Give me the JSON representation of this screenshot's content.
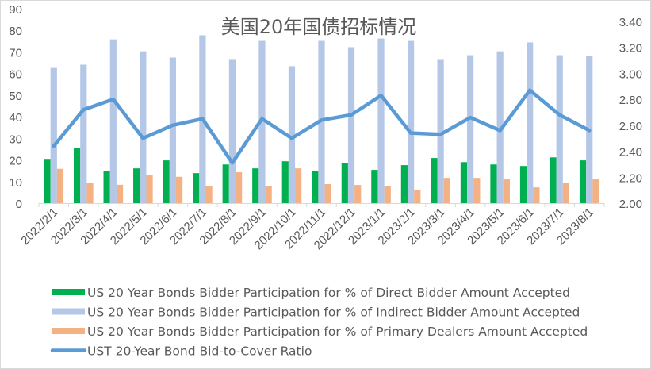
{
  "chart_data": {
    "type": "bar",
    "title": "美国20年国债招标情况",
    "xlabel": "",
    "ylabel": "",
    "y2label": "",
    "ylim": [
      0,
      90
    ],
    "y2lim": [
      2.0,
      3.4
    ],
    "yticks": [
      "0",
      "10",
      "20",
      "30",
      "40",
      "50",
      "60",
      "70",
      "80",
      "90"
    ],
    "y2ticks": [
      "2.00",
      "2.20",
      "2.40",
      "2.60",
      "2.80",
      "3.00",
      "3.20",
      "3.40"
    ],
    "grid": false,
    "legend_position": "bottom",
    "categories": [
      "2022/2/1",
      "2022/3/1",
      "2022/4/1",
      "2022/5/1",
      "2022/6/1",
      "2022/7/1",
      "2022/8/1",
      "2022/9/1",
      "2022/10/1",
      "2022/11/1",
      "2022/12/1",
      "2023/1/1",
      "2023/2/1",
      "2023/3/1",
      "2023/4/1",
      "2023/5/1",
      "2023/6/1",
      "2023/7/1",
      "2023/8/1"
    ],
    "series": [
      {
        "name": "US 20 Year Bonds Bidder Participation for % of Direct Bidder Amount Accepted",
        "type": "bar",
        "axis": "left",
        "color": "#00b050",
        "values": [
          20.5,
          25.6,
          15.0,
          16.1,
          19.8,
          13.9,
          17.9,
          16.1,
          19.4,
          15.0,
          18.7,
          15.4,
          17.6,
          20.9,
          19.0,
          17.9,
          17.2,
          21.2,
          19.8
        ]
      },
      {
        "name": "US 20 Year Bonds Bidder Participation for % of Indirect Bidder Amount Accepted",
        "type": "bar",
        "axis": "left",
        "color": "#b4c7e7",
        "values": [
          62.6,
          64.1,
          75.8,
          70.3,
          67.4,
          77.7,
          66.7,
          75.1,
          63.4,
          75.1,
          72.2,
          76.2,
          75.1,
          66.7,
          68.5,
          70.3,
          74.4,
          68.5,
          68.1
        ]
      },
      {
        "name": "US 20 Year Bonds Bidder Participation for % of Primary Dealers Amount Accepted",
        "type": "bar",
        "axis": "left",
        "color": "#f4b183",
        "values": [
          15.9,
          9.3,
          8.5,
          12.9,
          12.2,
          7.7,
          14.3,
          7.7,
          16.1,
          8.8,
          8.4,
          7.7,
          6.2,
          11.7,
          11.7,
          11.0,
          7.3,
          9.2,
          11.0
        ]
      },
      {
        "name": "UST 20-Year Bond Bid-to-Cover Ratio",
        "type": "line",
        "axis": "right",
        "color": "#5b9bd5",
        "values": [
          2.44,
          2.72,
          2.8,
          2.5,
          2.6,
          2.65,
          2.31,
          2.65,
          2.5,
          2.64,
          2.68,
          2.83,
          2.54,
          2.53,
          2.66,
          2.56,
          2.87,
          2.68,
          2.56
        ]
      }
    ]
  }
}
